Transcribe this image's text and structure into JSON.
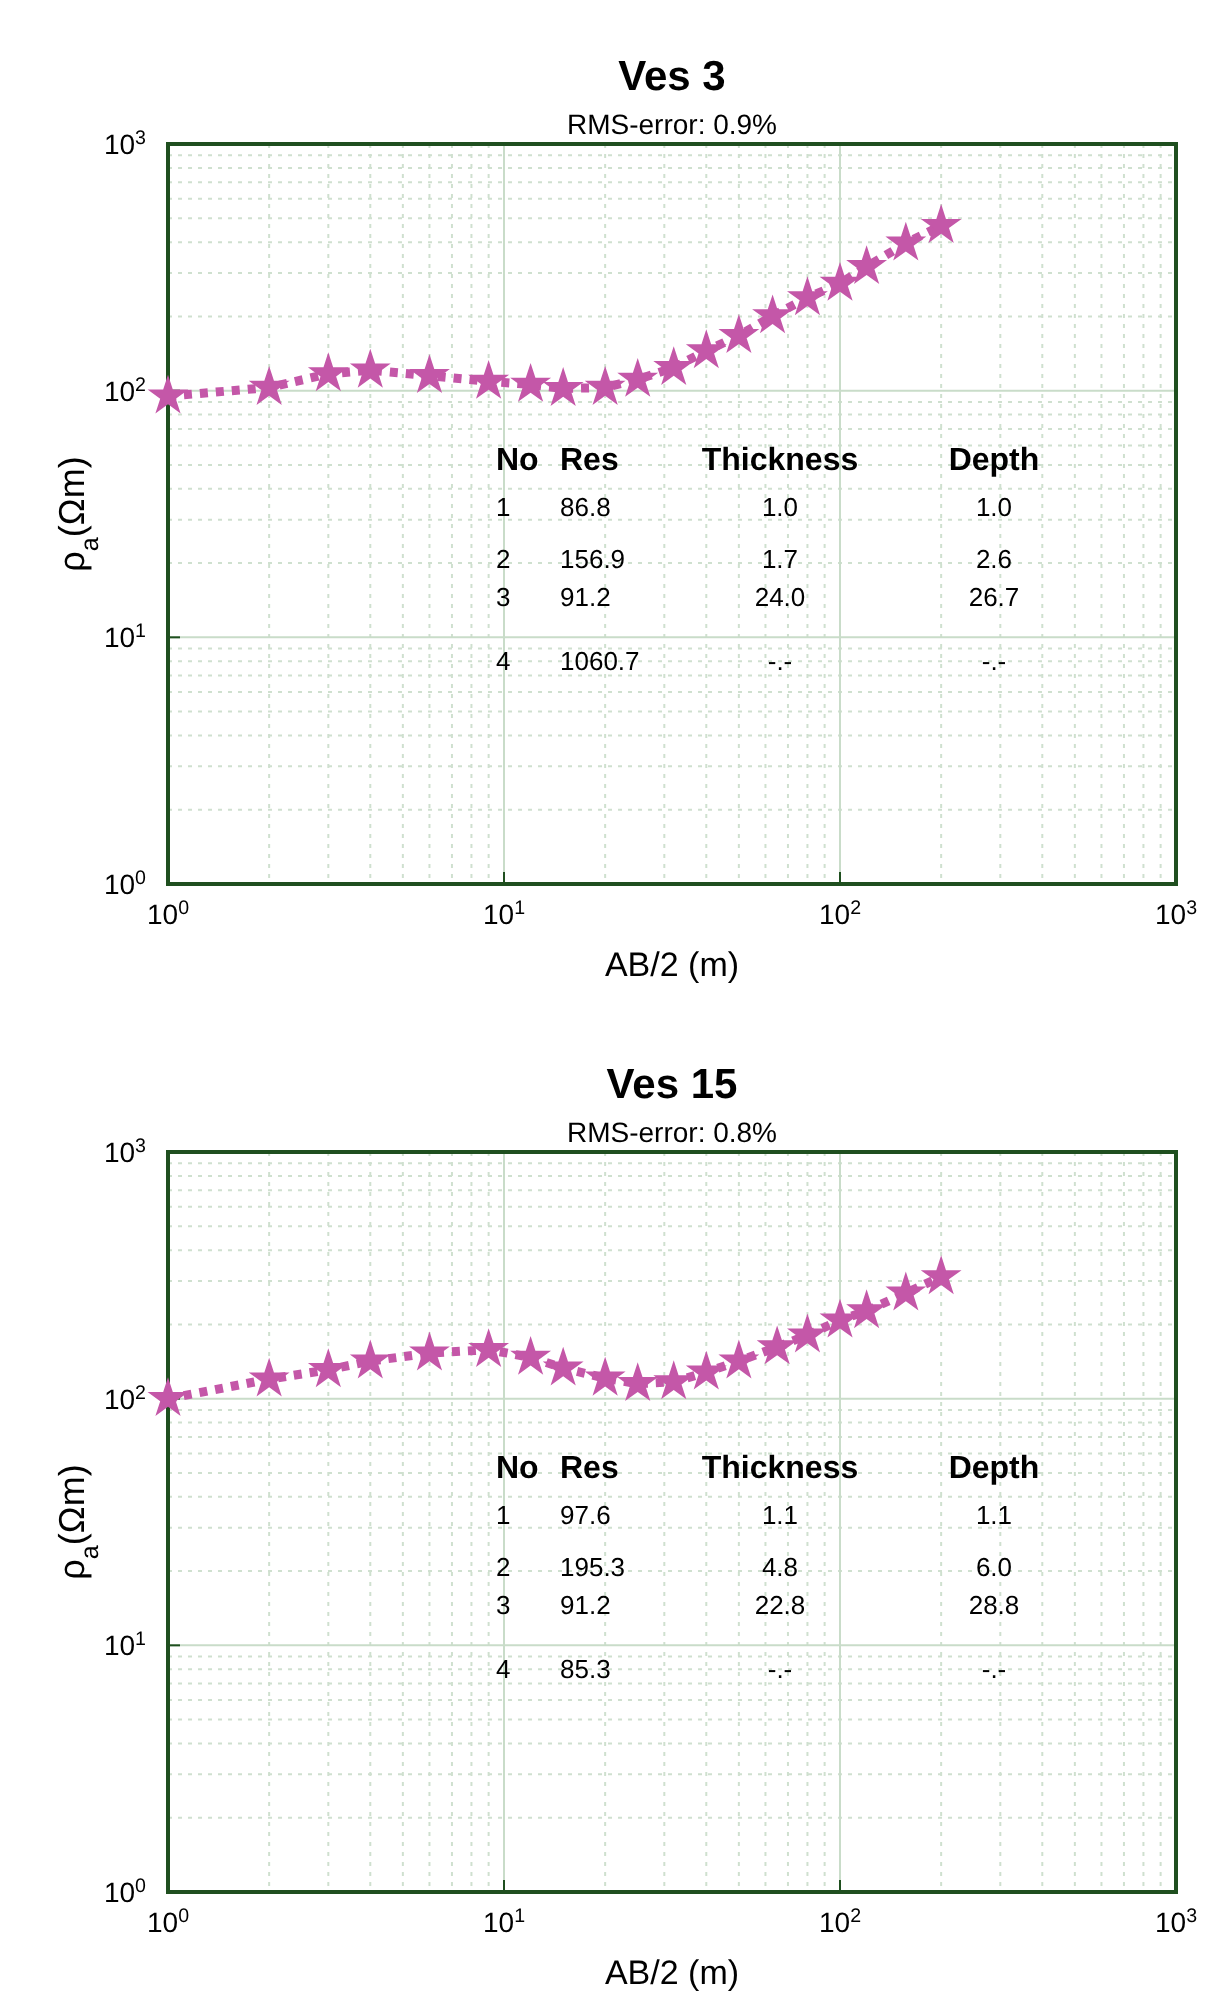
{
  "chart_data": [
    {
      "type": "line",
      "title": "Ves 3",
      "subtitle": "RMS-error: 0.9%",
      "xlabel": "AB/2 (m)",
      "ylabel": "ρ$_{a}$(Ωm)",
      "log": "xy",
      "grid": true,
      "marker": "star",
      "line_style": "dotted",
      "x": [
        1,
        2,
        3,
        4,
        6,
        9,
        12,
        15,
        20,
        25,
        32,
        40,
        50,
        63,
        80,
        100,
        120,
        157,
        200
      ],
      "series": [
        {
          "color": "#c457a8",
          "values": [
            95,
            103,
            117,
            121,
            115,
            109,
            106,
            102,
            103,
            111,
            124,
            145,
            167,
            201,
            238,
            272,
            318,
            396,
            467
          ]
        }
      ],
      "xlim": [
        1,
        1000
      ],
      "ylim": [
        1,
        1000
      ],
      "xticks": [
        {
          "value": 1,
          "label": "10$^{0}$"
        },
        {
          "value": 10,
          "label": "10$^{1}$"
        },
        {
          "value": 100,
          "label": "10$^{2}$"
        },
        {
          "value": 1000,
          "label": "10$^{3}$"
        }
      ],
      "yticks": [
        {
          "value": 1,
          "label": "10$^{0}$"
        },
        {
          "value": 10,
          "label": "10$^{1}$"
        },
        {
          "value": 100,
          "label": "10$^{2}$"
        },
        {
          "value": 1000,
          "label": "10$^{3}$"
        }
      ],
      "annotations": [
        "No",
        "Res",
        "Thickness",
        "Depth",
        "1",
        "86.8",
        "1.0",
        "1.0",
        "2",
        "156.9",
        "1.7",
        "2.6",
        "3",
        "91.2",
        "24.0",
        "26.7",
        "4",
        "1060.7",
        "-.-",
        "-.-"
      ]
    },
    {
      "type": "line",
      "title": "Ves 15",
      "subtitle": "RMS-error: 0.8%",
      "xlabel": "AB/2 (m)",
      "ylabel": "ρ$_{a}$(Ωm)",
      "log": "xy",
      "grid": true,
      "marker": "star",
      "line_style": "dotted",
      "x": [
        1,
        2,
        3,
        4,
        6,
        9,
        12,
        15,
        20,
        25,
        32,
        40,
        50,
        65,
        80,
        100,
        120,
        157,
        200
      ],
      "series": [
        {
          "color": "#c457a8",
          "values": [
            100,
            120,
            131,
            142,
            153,
            158,
            147,
            133,
            121,
            115,
            117,
            128,
            142,
            162,
            181,
            208,
            227,
            268,
            312
          ]
        }
      ],
      "xlim": [
        1,
        1000
      ],
      "ylim": [
        1,
        1000
      ],
      "xticks": [
        {
          "value": 1,
          "label": "10$^{0}$"
        },
        {
          "value": 10,
          "label": "10$^{1}$"
        },
        {
          "value": 100,
          "label": "10$^{2}$"
        },
        {
          "value": 1000,
          "label": "10$^{3}$"
        }
      ],
      "yticks": [
        {
          "value": 1,
          "label": "10$^{0}$"
        },
        {
          "value": 10,
          "label": "10$^{1}$"
        },
        {
          "value": 100,
          "label": "10$^{2}$"
        },
        {
          "value": 1000,
          "label": "10$^{3}$"
        }
      ],
      "annotations": [
        "No",
        "Res",
        "Thickness",
        "Depth",
        "1",
        "97.6",
        "1.1",
        "1.1",
        "2",
        "195.3",
        "4.8",
        "6.0",
        "3",
        "91.2",
        "22.8",
        "28.8",
        "4",
        "85.3",
        "-.-",
        "-.-"
      ]
    }
  ]
}
